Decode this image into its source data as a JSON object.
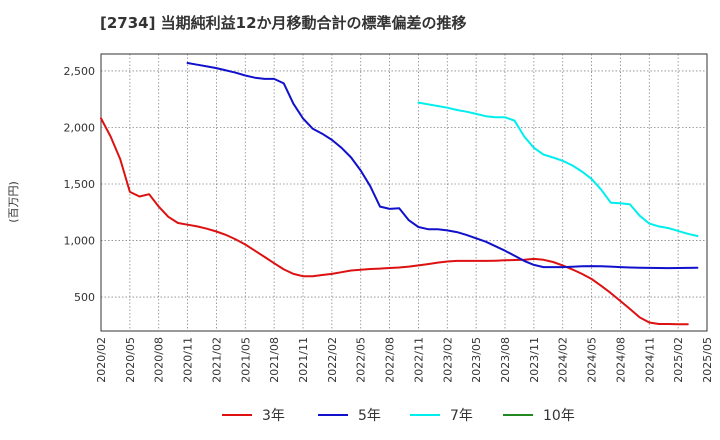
{
  "chart_data": {
    "type": "line",
    "title": "[2734]  当期純利益12か月移動合計の標準偏差の推移",
    "ylabel": "(百万円)",
    "xlabel": "",
    "ylim": [
      200,
      2650
    ],
    "yticks": [
      500,
      1000,
      1500,
      2000,
      2500
    ],
    "ytick_labels": [
      "500",
      "1,000",
      "1,500",
      "2,000",
      "2,500"
    ],
    "xticks": [
      "2020/02",
      "2020/05",
      "2020/08",
      "2020/11",
      "2021/02",
      "2021/05",
      "2021/08",
      "2021/11",
      "2022/02",
      "2022/05",
      "2022/08",
      "2022/11",
      "2023/02",
      "2023/05",
      "2023/08",
      "2023/11",
      "2024/02",
      "2024/05",
      "2024/08",
      "2024/11",
      "2025/02",
      "2025/05"
    ],
    "grid": true,
    "legend_position": "bottom",
    "series": [
      {
        "name": "3年",
        "color": "#dd1111",
        "start": "2020/02",
        "values": [
          2080,
          1920,
          1720,
          1430,
          1390,
          1410,
          1300,
          1210,
          1155,
          1140,
          1125,
          1105,
          1080,
          1050,
          1010,
          965,
          910,
          855,
          800,
          745,
          705,
          685,
          685,
          695,
          705,
          720,
          735,
          742,
          748,
          752,
          757,
          762,
          770,
          780,
          792,
          805,
          815,
          820,
          820,
          820,
          820,
          822,
          825,
          828,
          830,
          838,
          830,
          810,
          780,
          745,
          705,
          660,
          600,
          535,
          465,
          395,
          320,
          275,
          262,
          262,
          260,
          260
        ]
      },
      {
        "name": "5年",
        "color": "#1111cc",
        "start": "2020/11",
        "values": [
          2570,
          2555,
          2540,
          2525,
          2505,
          2485,
          2460,
          2440,
          2430,
          2430,
          2390,
          2210,
          2080,
          1990,
          1945,
          1890,
          1820,
          1735,
          1620,
          1480,
          1300,
          1280,
          1285,
          1180,
          1120,
          1100,
          1100,
          1090,
          1075,
          1050,
          1020,
          990,
          950,
          910,
          865,
          820,
          785,
          765,
          765,
          765,
          768,
          772,
          774,
          772,
          770,
          765,
          762,
          760,
          758,
          757,
          756,
          757,
          758,
          760
        ]
      },
      {
        "name": "7年",
        "color": "#00eeee",
        "start": "2022/11",
        "values": [
          2220,
          2205,
          2190,
          2175,
          2155,
          2140,
          2120,
          2100,
          2090,
          2090,
          2060,
          1920,
          1820,
          1760,
          1735,
          1705,
          1665,
          1610,
          1545,
          1450,
          1335,
          1330,
          1320,
          1220,
          1150,
          1125,
          1110,
          1085,
          1060,
          1040
        ]
      },
      {
        "name": "10年",
        "color": "#228822",
        "start": "2025/02",
        "values": []
      }
    ]
  }
}
